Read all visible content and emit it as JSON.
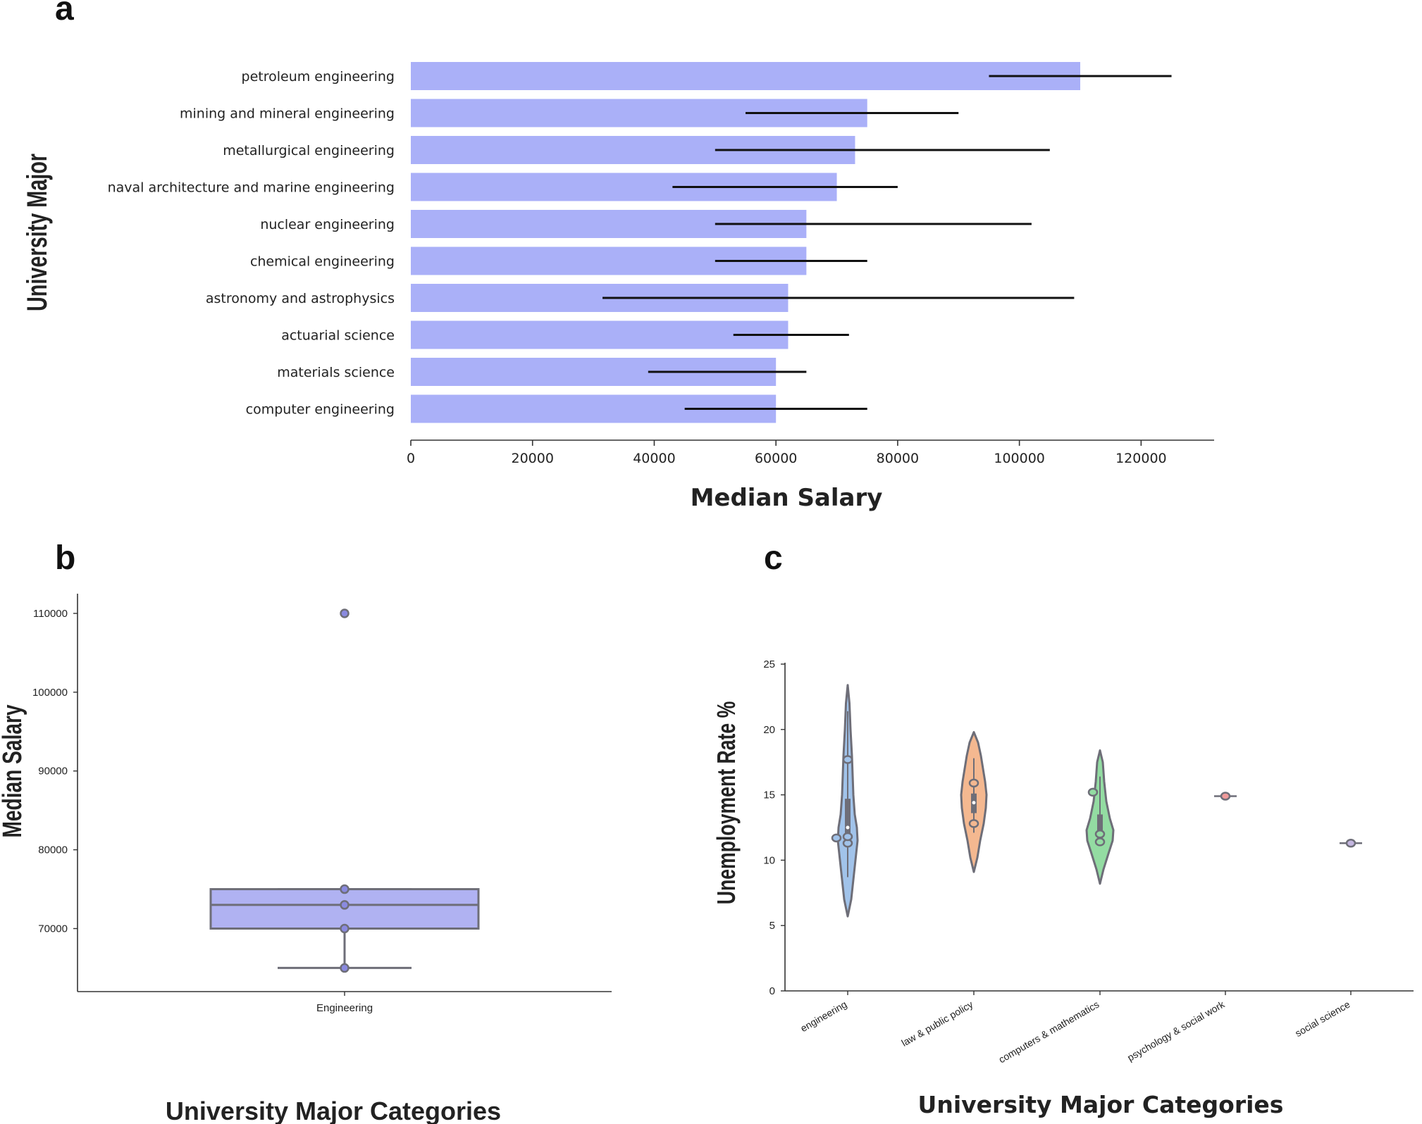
{
  "chart_data": [
    {
      "panel": "a",
      "type": "bar",
      "orientation": "horizontal",
      "title": "",
      "xlabel": "Median Salary",
      "ylabel": "University Major",
      "xlim": [
        0,
        132000
      ],
      "xticks": [
        0,
        20000,
        40000,
        60000,
        80000,
        100000,
        120000
      ],
      "bar_color": "#aab0f8",
      "categories": [
        "petroleum engineering",
        "mining and mineral engineering",
        "metallurgical engineering",
        "naval architecture and marine engineering",
        "nuclear engineering",
        "chemical engineering",
        "astronomy and astrophysics",
        "actuarial science",
        "materials science",
        "computer engineering"
      ],
      "values": [
        110000,
        75000,
        73000,
        70000,
        65000,
        65000,
        62000,
        62000,
        60000,
        60000
      ],
      "error_low": [
        95000,
        55000,
        50000,
        43000,
        50000,
        50000,
        31500,
        53000,
        39000,
        45000
      ],
      "error_high": [
        125000,
        90000,
        105000,
        80000,
        102000,
        75000,
        109000,
        72000,
        65000,
        75000
      ]
    },
    {
      "panel": "b",
      "type": "box",
      "title": "",
      "xlabel": "University Major Categories",
      "ylabel": "Median Salary",
      "ylim": [
        62000,
        112500
      ],
      "yticks": [
        70000,
        80000,
        90000,
        100000,
        110000
      ],
      "categories": [
        "Engineering"
      ],
      "box_color": "#b0b2f2",
      "box": {
        "min": 65000,
        "q1": 70000,
        "median": 73000,
        "q3": 75000,
        "max": 75000
      },
      "points": [
        110000,
        75000,
        73000,
        70000,
        65000
      ]
    },
    {
      "panel": "c",
      "type": "violin",
      "title": "",
      "xlabel": "University Major Categories",
      "ylabel": "Unemployment Rate %",
      "ylim": [
        0,
        25
      ],
      "yticks": [
        0,
        5,
        10,
        15,
        20,
        25
      ],
      "categories": [
        "engineering",
        "law & public policy",
        "computers & mathematics",
        "psychology & social work",
        "social science"
      ],
      "colors": [
        "#a1c3ea",
        "#f4b890",
        "#93dca2",
        "#ef9a9a",
        "#c4b6e0"
      ],
      "series": [
        {
          "name": "engineering",
          "min": 5.7,
          "max": 23.4,
          "median": 12.5,
          "q1": 11.8,
          "q3": 14.7,
          "points": [
            11.7,
            17.7,
            11.3,
            11.8
          ]
        },
        {
          "name": "law & public policy",
          "min": 9.1,
          "max": 19.8,
          "median": 14.4,
          "q1": 13.6,
          "q3": 15.1,
          "points": [
            15.9,
            12.8
          ]
        },
        {
          "name": "computers & mathematics",
          "min": 8.2,
          "max": 18.4,
          "median": 12.1,
          "q1": 11.6,
          "q3": 13.5,
          "points": [
            15.2,
            12.0,
            11.4
          ]
        },
        {
          "name": "psychology & social work",
          "min": 14.9,
          "max": 14.9,
          "median": 14.9,
          "q1": 14.9,
          "q3": 14.9,
          "points": [
            14.9
          ]
        },
        {
          "name": "social science",
          "min": 11.3,
          "max": 11.3,
          "median": 11.3,
          "q1": 11.3,
          "q3": 11.3,
          "points": [
            11.3
          ]
        }
      ]
    }
  ],
  "labels": {
    "a": "a",
    "b": "b",
    "c": "c"
  }
}
